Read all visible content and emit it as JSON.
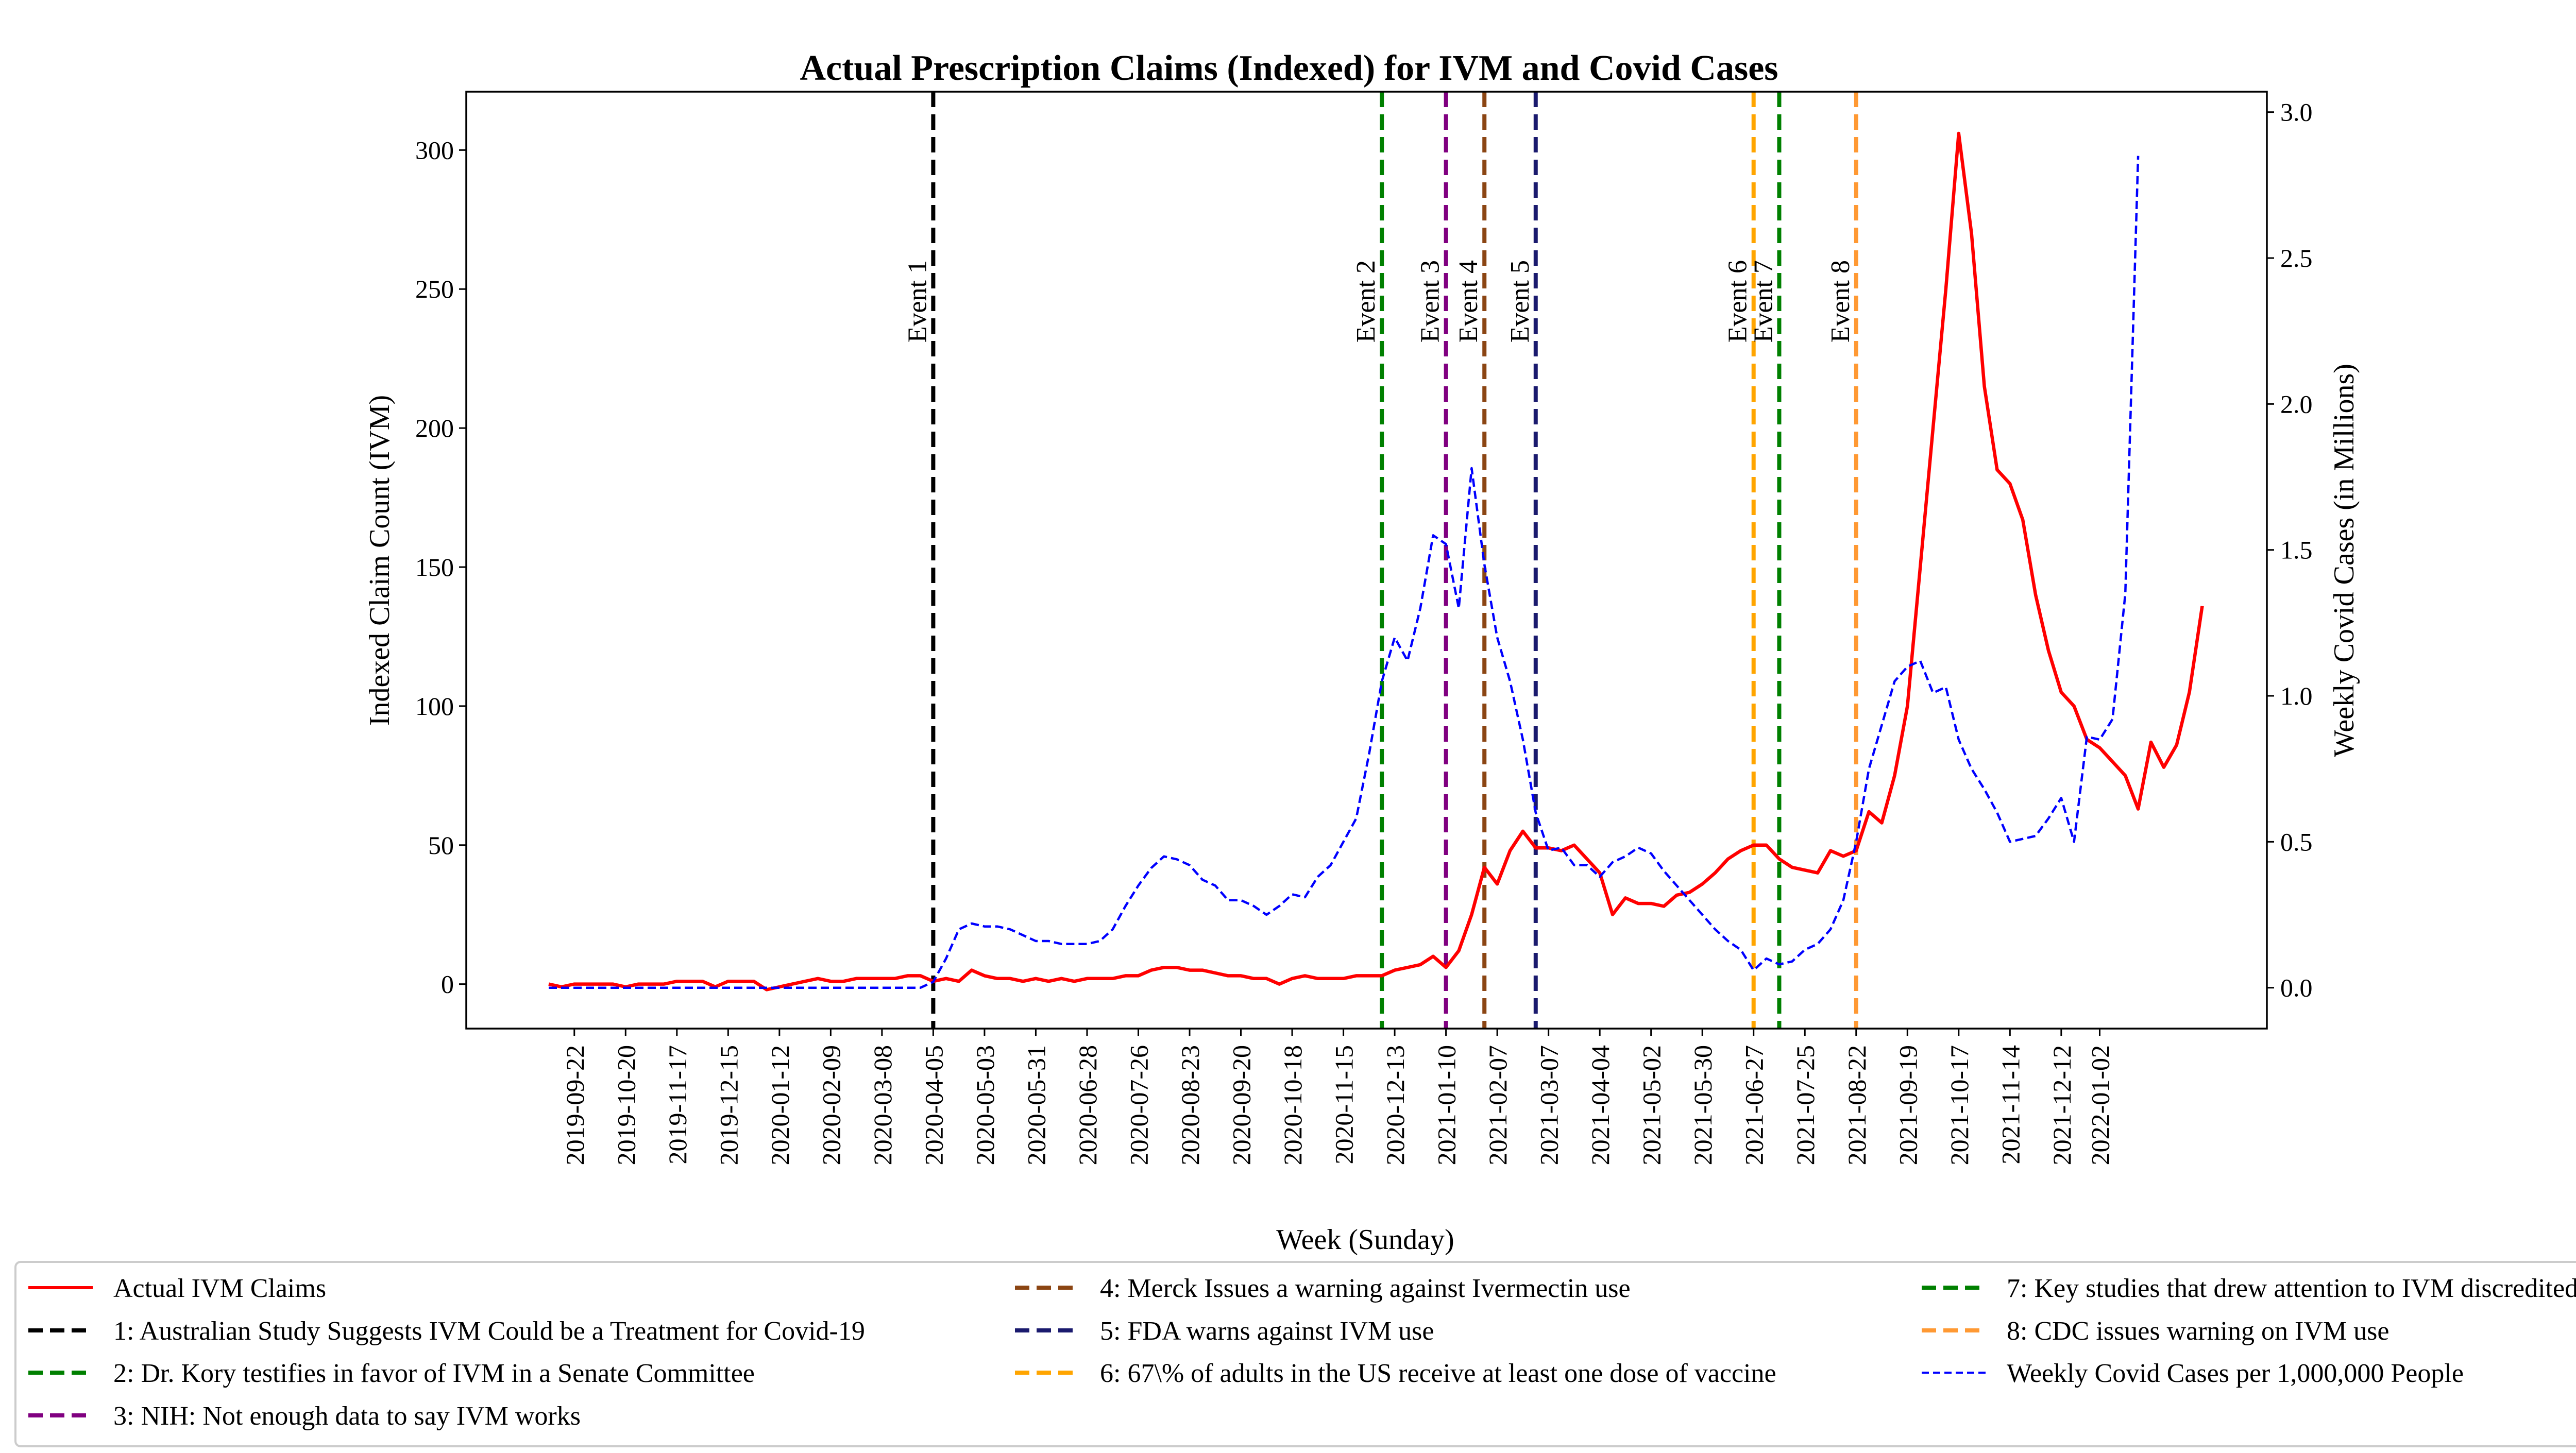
{
  "chart_data": {
    "type": "line",
    "title": "Actual Prescription Claims (Indexed) for IVM and Covid Cases",
    "xlabel": "Week (Sunday)",
    "ylabel_left": "Indexed Claim Count (IVM)",
    "ylabel_right": "Weekly Covid Cases (in Millions)",
    "ylim_left": [
      -16,
      321
    ],
    "ylim_right": [
      -0.14,
      3.07
    ],
    "left_ticks": [
      0,
      50,
      100,
      150,
      200,
      250,
      300
    ],
    "right_ticks": [
      "0.0",
      "0.5",
      "1.0",
      "1.5",
      "2.0",
      "2.5",
      "3.0"
    ],
    "grid": false,
    "legend_position": "bottom",
    "x_tick_labels": [
      "2019-09-22",
      "2019-10-20",
      "2019-11-17",
      "2019-12-15",
      "2020-01-12",
      "2020-02-09",
      "2020-03-08",
      "2020-04-05",
      "2020-05-03",
      "2020-05-31",
      "2020-06-28",
      "2020-07-26",
      "2020-08-23",
      "2020-09-20",
      "2020-10-18",
      "2020-11-15",
      "2020-12-13",
      "2021-01-10",
      "2021-02-07",
      "2021-03-07",
      "2021-04-04",
      "2021-05-02",
      "2021-05-30",
      "2021-06-27",
      "2021-07-25",
      "2021-08-22",
      "2021-09-19",
      "2021-10-17",
      "2021-11-14",
      "2021-12-12",
      "2022-01-02"
    ],
    "x_start": "2019-09-08",
    "series": [
      {
        "name": "Actual IVM Claims",
        "color": "#ff0000",
        "style": "solid",
        "axis": "left",
        "values": [
          0,
          -1,
          0,
          0,
          0,
          0,
          -1,
          0,
          0,
          0,
          1,
          1,
          1,
          -1,
          1,
          1,
          1,
          -2,
          -1,
          0,
          1,
          2,
          1,
          1,
          2,
          2,
          2,
          2,
          3,
          3,
          1,
          2,
          1,
          5,
          3,
          2,
          2,
          1,
          2,
          1,
          2,
          1,
          2,
          2,
          2,
          3,
          3,
          5,
          6,
          6,
          5,
          5,
          4,
          3,
          3,
          2,
          2,
          0,
          2,
          3,
          2,
          2,
          2,
          3,
          3,
          3,
          5,
          6,
          7,
          10,
          6,
          12,
          25,
          42,
          36,
          48,
          55,
          49,
          49,
          48,
          50,
          45,
          40,
          25,
          31,
          29,
          29,
          28,
          32,
          33,
          36,
          40,
          45,
          48,
          50,
          50,
          45,
          42,
          41,
          40,
          48,
          46,
          48,
          62,
          58,
          75,
          100,
          150,
          200,
          250,
          306,
          270,
          215,
          185,
          180,
          167,
          140,
          120,
          105,
          100,
          88,
          85,
          80,
          75,
          63,
          87,
          78,
          86,
          105,
          136
        ]
      },
      {
        "name": "Weekly Covid Cases per 1,000,000 People",
        "color": "#0000ff",
        "style": "dashed",
        "axis": "right",
        "values": [
          0,
          0,
          0,
          0,
          0,
          0,
          0,
          0,
          0,
          0,
          0,
          0,
          0,
          0,
          0,
          0,
          0,
          0,
          0,
          0,
          0,
          0,
          0,
          0,
          0,
          0,
          0,
          0,
          0,
          0,
          0.02,
          0.1,
          0.2,
          0.22,
          0.21,
          0.21,
          0.2,
          0.18,
          0.16,
          0.16,
          0.15,
          0.15,
          0.15,
          0.16,
          0.2,
          0.28,
          0.35,
          0.41,
          0.45,
          0.44,
          0.42,
          0.37,
          0.35,
          0.3,
          0.3,
          0.28,
          0.25,
          0.28,
          0.32,
          0.31,
          0.38,
          0.42,
          0.5,
          0.58,
          0.8,
          1.05,
          1.2,
          1.12,
          1.3,
          1.55,
          1.52,
          1.3,
          1.78,
          1.45,
          1.2,
          1.05,
          0.85,
          0.6,
          0.47,
          0.48,
          0.42,
          0.42,
          0.38,
          0.43,
          0.45,
          0.48,
          0.46,
          0.4,
          0.35,
          0.3,
          0.25,
          0.2,
          0.16,
          0.13,
          0.06,
          0.1,
          0.08,
          0.09,
          0.13,
          0.15,
          0.2,
          0.3,
          0.5,
          0.75,
          0.9,
          1.05,
          1.1,
          1.12,
          1.01,
          1.03,
          0.85,
          0.75,
          0.68,
          0.6,
          0.5,
          0.51,
          0.52,
          0.58,
          0.65,
          0.5,
          0.86,
          0.85,
          0.92,
          1.35,
          2.85
        ]
      }
    ],
    "events": [
      {
        "name": "Event 1",
        "color": "#000000",
        "index": 30
      },
      {
        "name": "Event 2",
        "color": "#008000",
        "index": 65
      },
      {
        "name": "Event 3",
        "color": "#800080",
        "index": 70
      },
      {
        "name": "Event 4",
        "color": "#8b4513",
        "index": 73
      },
      {
        "name": "Event 5",
        "color": "#1a1a6e",
        "index": 77
      },
      {
        "name": "Event 6",
        "color": "#ffa500",
        "index": 94
      },
      {
        "name": "Event 7",
        "color": "#008000",
        "index": 96
      },
      {
        "name": "Event 8",
        "color": "#ff9933",
        "index": 102
      }
    ],
    "legend": [
      {
        "label": "Actual IVM Claims",
        "color": "#ff0000",
        "style": "solid"
      },
      {
        "label": "1: Australian Study Suggests IVM Could be a Treatment for Covid-19",
        "color": "#000000",
        "style": "dashed"
      },
      {
        "label": "2: Dr. Kory testifies in favor of IVM in a Senate Committee",
        "color": "#008000",
        "style": "dashed"
      },
      {
        "label": "3: NIH: Not enough data to say IVM works",
        "color": "#800080",
        "style": "dashed"
      },
      {
        "label": "4: Merck Issues a warning against Ivermectin use",
        "color": "#8b4513",
        "style": "dashed"
      },
      {
        "label": "5: FDA warns against IVM use",
        "color": "#1a1a6e",
        "style": "dashed"
      },
      {
        "label": "6: 67\\% of adults in the US receive at least one dose of vaccine",
        "color": "#ffa500",
        "style": "dashed"
      },
      {
        "label": "7: Key studies that drew attention to IVM discredited",
        "color": "#008000",
        "style": "dashed"
      },
      {
        "label": "8: CDC issues warning on IVM use",
        "color": "#ff9933",
        "style": "dashed"
      },
      {
        "label": "Weekly Covid Cases per 1,000,000 People",
        "color": "#0000ff",
        "style": "thin-dashed"
      }
    ]
  }
}
